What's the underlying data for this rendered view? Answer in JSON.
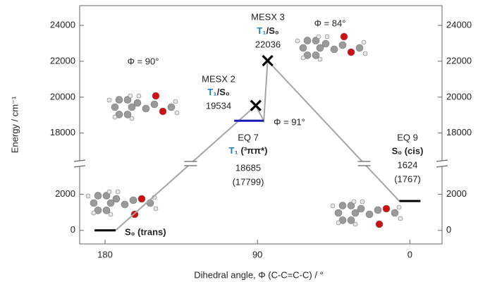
{
  "chart_data": {
    "type": "line",
    "xlabel": "Dihedral angle, Φ (C-C=C-C) / °",
    "ylabel": "Energy / cm⁻¹",
    "xlim": [
      195,
      -19
    ],
    "xticks": [
      180,
      90,
      0
    ],
    "ylim_lower": [
      -750,
      3700
    ],
    "yticks_lower": [
      0,
      2000
    ],
    "ylim_upper": [
      16300,
      25100
    ],
    "yticks_upper": [
      18000,
      20000,
      22000,
      24000
    ],
    "line_color": "#a6a6a6",
    "states": [
      {
        "marker": "level",
        "color": "#000000",
        "x": 180,
        "value": 0,
        "label": "S₀ (trans)"
      },
      {
        "marker": "cross",
        "color": "#000000",
        "x": 91,
        "value": 19534,
        "title": "MESX 2",
        "label_parts": [
          "T₁",
          "/S₀"
        ]
      },
      {
        "marker": "level",
        "color": "#1a1ab8",
        "x": 95,
        "value": 18685,
        "title": "EQ 7",
        "label_parts": [
          "T₁",
          " (³ππ*)"
        ],
        "note": "(17799)"
      },
      {
        "marker": "cross",
        "color": "#000000",
        "x": 84,
        "value": 22036,
        "title": "MESX 3",
        "label_parts": [
          "T₁",
          "/S₀"
        ]
      },
      {
        "marker": "level",
        "color": "#000000",
        "x": 0,
        "value": 1624,
        "title": "EQ 9",
        "label": "S₀ (cis)",
        "note": "(1767)"
      }
    ],
    "annotations": [
      "Φ = 90°",
      "Φ = 91°",
      "Φ = 84°"
    ]
  }
}
